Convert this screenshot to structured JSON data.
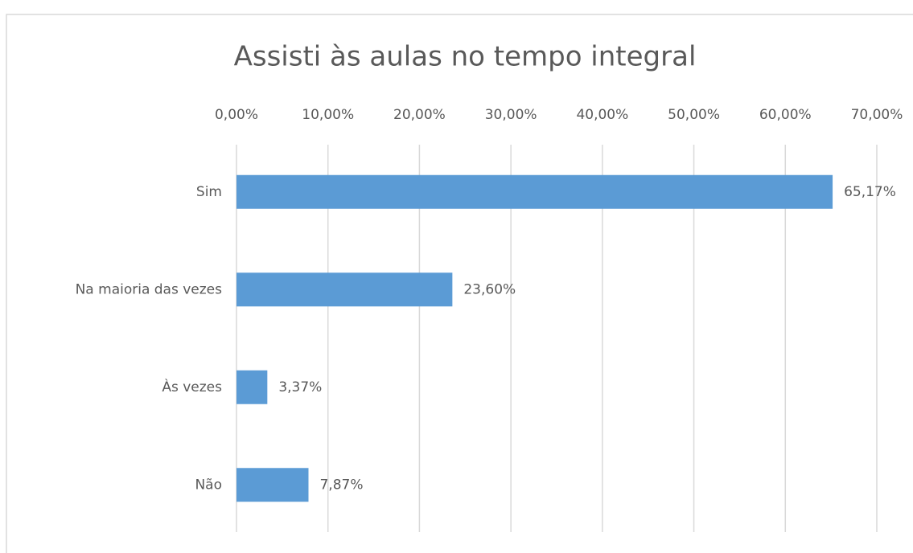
{
  "chart_data": {
    "type": "bar",
    "orientation": "horizontal",
    "title": "Assisti às aulas no tempo integral",
    "categories": [
      "Sim",
      "Na maioria das vezes",
      "Às vezes",
      "Não"
    ],
    "values": [
      65.17,
      23.6,
      3.37,
      7.87
    ],
    "value_labels": [
      "65,17%",
      "23,60%",
      "3,37%",
      "7,87%"
    ],
    "color": "#5b9bd5",
    "xlim": [
      0,
      70
    ],
    "xticks": [
      {
        "value": 0,
        "label": "0,00%"
      },
      {
        "value": 10,
        "label": "10,00%"
      },
      {
        "value": 20,
        "label": "20,00%"
      },
      {
        "value": 30,
        "label": "30,00%"
      },
      {
        "value": 40,
        "label": "40,00%"
      },
      {
        "value": 50,
        "label": "50,00%"
      },
      {
        "value": 60,
        "label": "60,00%"
      },
      {
        "value": 70,
        "label": "70,00%"
      }
    ],
    "grid": true
  }
}
